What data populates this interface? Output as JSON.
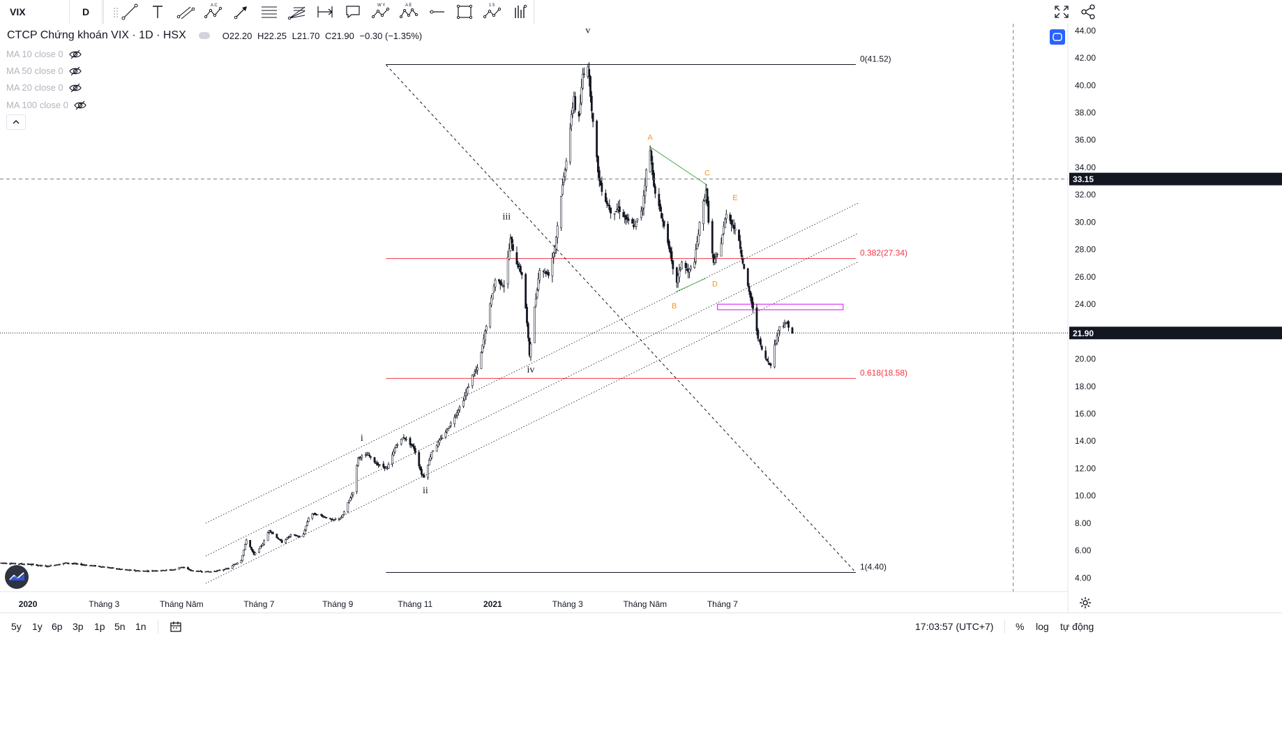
{
  "header": {
    "symbol": "VIX",
    "interval": "D"
  },
  "toolbar": {
    "icons": [
      "trend-line-icon",
      "text-icon",
      "parallel-channel-icon",
      "abcd-pattern-icon",
      "arrow-icon",
      "fib-retracement-icon",
      "fib-fan-icon",
      "date-range-icon",
      "callout-icon",
      "wxy-pattern-icon",
      "abcde-pattern-icon",
      "horizontal-ray-icon",
      "rectangle-icon",
      "elliott-wave-icon",
      "long-position-icon"
    ],
    "abc_label_top": "A C",
    "wxy_label_top": "W Y",
    "ae_label_top": "A E",
    "nums_label_top": "1 5"
  },
  "legend": {
    "title": "CTCP Chứng khoán VIX · 1D · HSX",
    "open": "O22.20",
    "high": "H22.25",
    "low": "L21.70",
    "close": "C21.90",
    "change": "−0.30 (−1.35%)"
  },
  "indicators": [
    {
      "label": "MA 10 close 0"
    },
    {
      "label": "MA 50 close 0"
    },
    {
      "label": "MA 20 close 0"
    },
    {
      "label": "MA 100 close 0"
    }
  ],
  "bottom": {
    "ranges": [
      "5y",
      "1y",
      "6p",
      "3p",
      "1p",
      "5n",
      "1n"
    ],
    "time": "17:03:57 (UTC+7)",
    "percent": "%",
    "log": "log",
    "auto": "tự động"
  },
  "colors": {
    "candle": "#131722",
    "fib_line": "#f23645",
    "fib_label": "#f23645",
    "wave_orange": "#f7931a",
    "triangle_green": "#4caf50",
    "box_magenta": "#e040fb",
    "accent": "#2962ff"
  },
  "chart_data": {
    "type": "candlestick",
    "symbol": "VIX",
    "interval": "1D",
    "y_axis": {
      "ticks": [
        "44.00",
        "42.00",
        "40.00",
        "38.00",
        "36.00",
        "34.00",
        "32.00",
        "30.00",
        "28.00",
        "26.00",
        "24.00",
        "22.00",
        "20.00",
        "18.00",
        "16.00",
        "14.00",
        "12.00",
        "10.00",
        "8.00",
        "6.00",
        "4.00"
      ],
      "ylim": [
        3.0,
        44.5
      ],
      "crosshair_label": "33.15",
      "last_price_label": "21.90"
    },
    "x_axis": {
      "ticks": [
        {
          "label": "2020",
          "bold": true,
          "day": 0
        },
        {
          "label": "Tháng 3",
          "bold": false,
          "day": 60
        },
        {
          "label": "Tháng Năm",
          "bold": false,
          "day": 121
        },
        {
          "label": "Tháng 7",
          "bold": false,
          "day": 182
        },
        {
          "label": "Tháng 9",
          "bold": false,
          "day": 244
        },
        {
          "label": "Tháng 11",
          "bold": false,
          "day": 305
        },
        {
          "label": "2021",
          "bold": true,
          "day": 366
        },
        {
          "label": "Tháng 3",
          "bold": false,
          "day": 425
        },
        {
          "label": "Tháng Năm",
          "bold": false,
          "day": 486
        },
        {
          "label": "Tháng 7",
          "bold": false,
          "day": 547
        }
      ],
      "day_range": [
        -22,
        819
      ],
      "unit": "days from 2020-01-01"
    },
    "price_path": [
      [
        -22,
        5.1
      ],
      [
        0,
        5.0
      ],
      [
        15,
        4.85
      ],
      [
        30,
        5.1
      ],
      [
        45,
        4.95
      ],
      [
        60,
        4.8
      ],
      [
        75,
        4.6
      ],
      [
        90,
        4.5
      ],
      [
        105,
        4.55
      ],
      [
        115,
        4.6
      ],
      [
        121,
        4.8
      ],
      [
        130,
        4.5
      ],
      [
        145,
        4.45
      ],
      [
        158,
        4.7
      ],
      [
        168,
        5.3
      ],
      [
        172,
        6.8
      ],
      [
        178,
        5.7
      ],
      [
        185,
        6.5
      ],
      [
        190,
        7.5
      ],
      [
        200,
        6.6
      ],
      [
        208,
        7.2
      ],
      [
        216,
        6.9
      ],
      [
        222,
        8.7
      ],
      [
        230,
        8.6
      ],
      [
        240,
        8.2
      ],
      [
        247,
        8.4
      ],
      [
        256,
        10.3
      ],
      [
        260,
        12.8
      ],
      [
        268,
        13.0
      ],
      [
        275,
        12.3
      ],
      [
        283,
        12.0
      ],
      [
        290,
        13.7
      ],
      [
        296,
        14.3
      ],
      [
        304,
        13.5
      ],
      [
        310,
        11.6
      ],
      [
        312,
        11.4
      ],
      [
        318,
        13.2
      ],
      [
        330,
        14.8
      ],
      [
        342,
        16.8
      ],
      [
        350,
        18.8
      ],
      [
        355,
        19.4
      ],
      [
        362,
        23.0
      ],
      [
        368,
        25.8
      ],
      [
        375,
        25.4
      ],
      [
        380,
        28.7
      ],
      [
        385,
        27.0
      ],
      [
        390,
        26.0
      ],
      [
        395,
        20.3
      ],
      [
        398,
        23.0
      ],
      [
        403,
        26.6
      ],
      [
        410,
        26.2
      ],
      [
        415,
        28.2
      ],
      [
        420,
        32.0
      ],
      [
        424,
        34.6
      ],
      [
        430,
        39.2
      ],
      [
        433,
        36.5
      ],
      [
        437,
        40.8
      ],
      [
        441,
        41.5
      ],
      [
        446,
        36.2
      ],
      [
        450,
        33.0
      ],
      [
        454,
        31.8
      ],
      [
        460,
        30.6
      ],
      [
        465,
        31.0
      ],
      [
        472,
        30.1
      ],
      [
        478,
        29.7
      ],
      [
        484,
        31.1
      ],
      [
        488,
        34.6
      ],
      [
        490,
        35.2
      ],
      [
        494,
        32.0
      ],
      [
        498,
        30.8
      ],
      [
        505,
        28.2
      ],
      [
        510,
        25.3
      ],
      [
        515,
        27.1
      ],
      [
        520,
        26.3
      ],
      [
        525,
        27.2
      ],
      [
        530,
        30.5
      ],
      [
        534,
        32.4
      ],
      [
        537,
        29.0
      ],
      [
        540,
        27.0
      ],
      [
        545,
        28.0
      ],
      [
        550,
        30.7
      ],
      [
        555,
        29.8
      ],
      [
        560,
        28.7
      ],
      [
        565,
        26.0
      ],
      [
        570,
        24.1
      ],
      [
        575,
        21.6
      ],
      [
        580,
        20.1
      ],
      [
        585,
        19.6
      ],
      [
        588,
        21.0
      ],
      [
        592,
        22.4
      ],
      [
        598,
        22.6
      ],
      [
        602,
        21.9
      ]
    ],
    "wave_labels": [
      {
        "text": "i",
        "day": 263,
        "price": 14.0
      },
      {
        "text": "ii",
        "day": 313,
        "price": 10.2
      },
      {
        "text": "iii",
        "day": 377,
        "price": 30.2
      },
      {
        "text": "iv",
        "day": 396,
        "price": 19.0
      },
      {
        "text": "v",
        "day": 441,
        "price": 43.8
      },
      {
        "text": "A",
        "day": 490,
        "price": 36.0
      },
      {
        "text": "B",
        "day": 509,
        "price": 23.7
      },
      {
        "text": "C",
        "day": 535,
        "price": 33.4
      },
      {
        "text": "D",
        "day": 541,
        "price": 25.3
      },
      {
        "text": "E",
        "day": 557,
        "price": 31.6
      }
    ],
    "fibonacci": [
      {
        "level": "0",
        "price": 41.52,
        "label": "0(41.52)"
      },
      {
        "level": "0.382",
        "price": 27.34,
        "label": "0.382(27.34)"
      },
      {
        "level": "0.618",
        "price": 18.58,
        "label": "0.618(18.58)"
      },
      {
        "level": "1",
        "price": 4.4,
        "label": "1(4.40)"
      }
    ],
    "fib_day_range": [
      282,
      652
    ],
    "trend_line_dashed": [
      [
        282,
        41.5
      ],
      [
        652,
        4.4
      ]
    ],
    "channel_lines": [
      [
        [
          140,
          8.0
        ],
        [
          654,
          31.4
        ]
      ],
      [
        [
          140,
          5.6
        ],
        [
          654,
          29.2
        ]
      ],
      [
        [
          140,
          3.6
        ],
        [
          654,
          27.1
        ]
      ]
    ],
    "triangle": [
      [
        490,
        35.5
      ],
      [
        535,
        32.7
      ],
      [
        510,
        24.9
      ],
      [
        534,
        25.9
      ]
    ],
    "zone_box": {
      "day_range": [
        543,
        642
      ],
      "price_range": [
        23.6,
        24.0
      ]
    },
    "crosshair": {
      "day": 776,
      "price": 33.15
    }
  }
}
